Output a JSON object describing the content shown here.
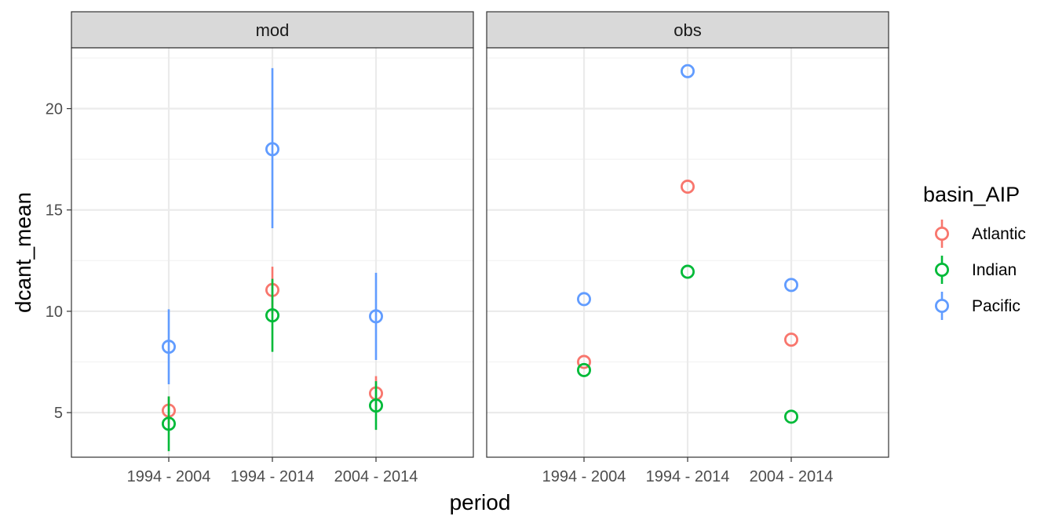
{
  "chart_data": {
    "type": "scatter",
    "subtype": "pointrange-faceted",
    "xlabel": "period",
    "ylabel": "dcant_mean",
    "ylim": [
      2.8,
      23.0
    ],
    "yticks": [
      5,
      10,
      15,
      20
    ],
    "categories": [
      "1994 - 2004",
      "1994 - 2014",
      "2004 - 2014"
    ],
    "legend": {
      "title": "basin_AIP",
      "position": "right",
      "entries": [
        {
          "name": "Atlantic",
          "color": "#F8766D"
        },
        {
          "name": "Indian",
          "color": "#00BA38"
        },
        {
          "name": "Pacific",
          "color": "#619CFF"
        }
      ]
    },
    "grid": true,
    "panels": [
      {
        "label": "mod",
        "series": [
          {
            "name": "Atlantic",
            "values": [
              5.1,
              11.05,
              5.95
            ],
            "lower": [
              4.4,
              9.9,
              5.1
            ],
            "upper": [
              5.8,
              12.2,
              6.8
            ]
          },
          {
            "name": "Indian",
            "values": [
              4.45,
              9.8,
              5.35
            ],
            "lower": [
              3.1,
              8.0,
              4.15
            ],
            "upper": [
              5.8,
              11.6,
              6.55
            ]
          },
          {
            "name": "Pacific",
            "values": [
              8.25,
              18.0,
              9.75
            ],
            "lower": [
              6.4,
              14.1,
              7.6
            ],
            "upper": [
              10.1,
              22.0,
              11.9
            ]
          }
        ]
      },
      {
        "label": "obs",
        "series": [
          {
            "name": "Atlantic",
            "values": [
              7.5,
              16.15,
              8.6
            ],
            "lower": [
              7.5,
              16.15,
              8.6
            ],
            "upper": [
              7.5,
              16.15,
              8.6
            ]
          },
          {
            "name": "Indian",
            "values": [
              7.1,
              11.95,
              4.8
            ],
            "lower": [
              7.1,
              11.95,
              4.8
            ],
            "upper": [
              7.1,
              11.95,
              4.8
            ]
          },
          {
            "name": "Pacific",
            "values": [
              10.6,
              21.85,
              11.3
            ],
            "lower": [
              10.6,
              21.85,
              11.3
            ],
            "upper": [
              10.6,
              21.85,
              11.3
            ]
          }
        ]
      }
    ]
  }
}
